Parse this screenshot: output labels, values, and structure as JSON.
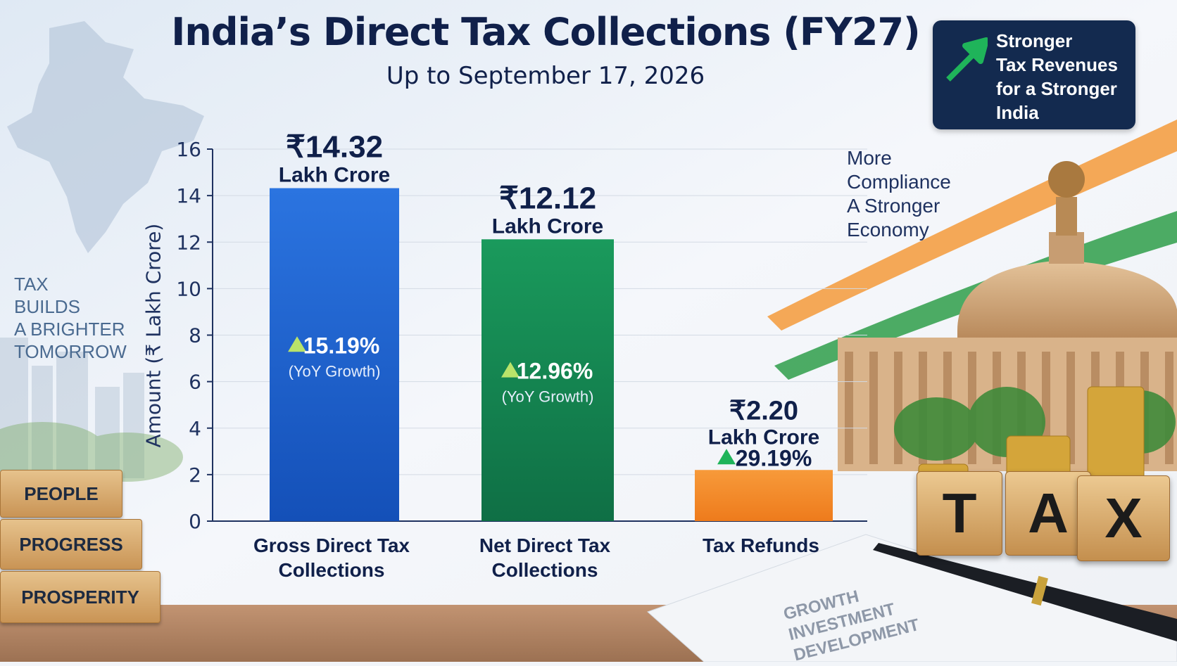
{
  "header": {
    "title": "India’s Direct Tax Collections (FY27)",
    "subtitle": "Up to September 17, 2026"
  },
  "badge": {
    "lines": [
      "Stronger",
      "Tax Revenues",
      "for a Stronger",
      "India"
    ],
    "icon": "up-arrow-icon",
    "background": "#132a4f"
  },
  "tagline": [
    "More",
    "Compliance",
    "A Stronger",
    "Economy"
  ],
  "left_slogan": [
    "TAX",
    "BUILDS",
    "A BRIGHTER",
    "TOMORROW"
  ],
  "blocks": [
    "PEOPLE",
    "PROGRESS",
    "PROSPERITY"
  ],
  "tax_cubes": [
    "T",
    "A",
    "X"
  ],
  "paper_words": [
    "GROWTH",
    "INVESTMENT",
    "DEVELOPMENT"
  ],
  "chart_data": {
    "type": "bar",
    "title": "India’s Direct Tax Collections (FY27)",
    "subtitle": "Up to September 17, 2026",
    "ylabel": "Amount (₹ Lakh Crore)",
    "xlabel": "",
    "ylim": [
      0,
      16
    ],
    "yticks": [
      0,
      2,
      4,
      6,
      8,
      10,
      12,
      14,
      16
    ],
    "grid": true,
    "categories": [
      [
        "Gross Direct Tax",
        "Collections"
      ],
      [
        "Net Direct Tax",
        "Collections"
      ],
      [
        "Tax Refunds"
      ]
    ],
    "values": [
      14.32,
      12.12,
      2.2
    ],
    "value_labels": [
      "₹14.32",
      "₹12.12",
      "₹2.20"
    ],
    "unit_label": "Lakh Crore",
    "growth": [
      "15.19%",
      "12.96%",
      "29.19%"
    ],
    "growth_note": "(YoY Growth)",
    "colors": [
      "#1f5fd0",
      "#148050",
      "#f28a2a"
    ]
  }
}
